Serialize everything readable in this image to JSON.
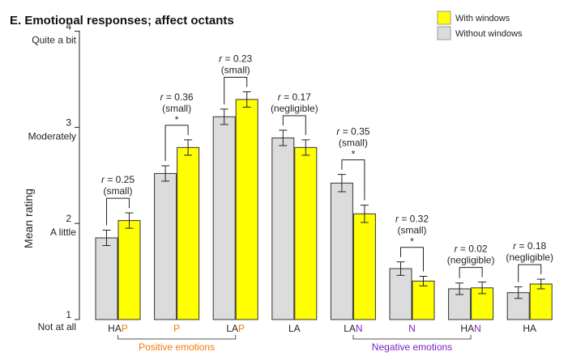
{
  "chart_data": {
    "type": "bar",
    "title": "E. Emotional responses; affect octants",
    "ylabel": "Mean rating",
    "xlabel": "",
    "ylim": [
      1,
      4
    ],
    "yticks": [
      {
        "value": 1,
        "num": "1",
        "text": "Not at all"
      },
      {
        "value": 2,
        "num": "2",
        "text": "A little"
      },
      {
        "value": 3,
        "num": "3",
        "text": "Moderately"
      },
      {
        "value": 4,
        "num": "4",
        "text": "Quite a bit"
      }
    ],
    "categories": [
      {
        "prefix": "HA",
        "suffix": "P",
        "suffix_color": "#f07a00"
      },
      {
        "prefix": "",
        "suffix": "P",
        "suffix_color": "#f07a00"
      },
      {
        "prefix": "LA",
        "suffix": "P",
        "suffix_color": "#f07a00"
      },
      {
        "prefix": "LA",
        "suffix": "",
        "suffix_color": ""
      },
      {
        "prefix": "LA",
        "suffix": "N",
        "suffix_color": "#7b22c4"
      },
      {
        "prefix": "",
        "suffix": "N",
        "suffix_color": "#7b22c4"
      },
      {
        "prefix": "HA",
        "suffix": "N",
        "suffix_color": "#7b22c4"
      },
      {
        "prefix": "HA",
        "suffix": "",
        "suffix_color": ""
      }
    ],
    "series": [
      {
        "name": "Without windows",
        "color": "#dcdcdc",
        "values": [
          1.85,
          2.52,
          3.11,
          2.89,
          2.42,
          1.53,
          1.32,
          1.28
        ],
        "errors": [
          0.08,
          0.08,
          0.08,
          0.08,
          0.09,
          0.07,
          0.06,
          0.06
        ]
      },
      {
        "name": "With windows",
        "color": "#ffff00",
        "values": [
          2.03,
          2.79,
          3.29,
          2.79,
          2.1,
          1.4,
          1.33,
          1.37
        ],
        "errors": [
          0.08,
          0.08,
          0.08,
          0.08,
          0.09,
          0.05,
          0.06,
          0.05
        ]
      }
    ],
    "legend": {
      "position": "top-right",
      "order": [
        "With windows",
        "Without windows"
      ]
    },
    "annotations": [
      {
        "r": "= 0.25",
        "size": "(small)",
        "star": false
      },
      {
        "r": "= 0.36",
        "size": "(small)",
        "star": true
      },
      {
        "r": "= 0.23",
        "size": "(small)",
        "star": false
      },
      {
        "r": "= 0.17",
        "size": "(negligible)",
        "star": false
      },
      {
        "r": "= 0.35",
        "size": "(small)",
        "star": true
      },
      {
        "r": "= 0.32",
        "size": "(small)",
        "star": true
      },
      {
        "r": "= 0.02",
        "size": "(negligible)",
        "star": false
      },
      {
        "r": "= 0.18",
        "size": "(negligible)",
        "star": false
      }
    ],
    "r_symbol": "r",
    "star_symbol": "*",
    "groups": [
      {
        "label": "Positive emotions",
        "from": 0,
        "to": 2,
        "color": "#f07a00"
      },
      {
        "label": "Negative emotions",
        "from": 4,
        "to": 6,
        "color": "#7b22c4"
      }
    ]
  }
}
